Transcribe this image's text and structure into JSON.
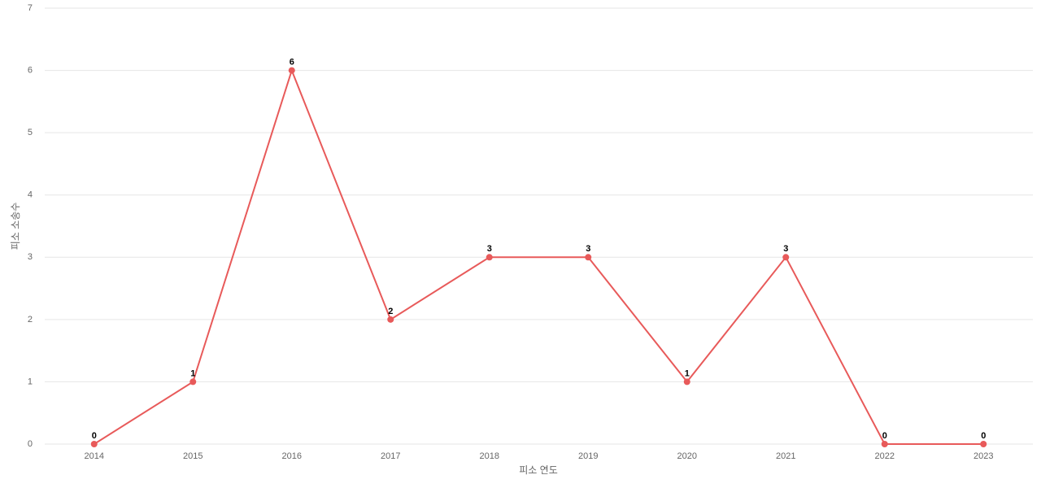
{
  "chart_data": {
    "type": "line",
    "x_label": "피소 연도",
    "y_label": "피소 소송수",
    "categories": [
      "2014",
      "2015",
      "2016",
      "2017",
      "2018",
      "2019",
      "2020",
      "2021",
      "2022",
      "2023"
    ],
    "values": [
      0,
      1,
      6,
      2,
      3,
      3,
      1,
      3,
      0,
      0
    ],
    "color": "#e85a5a",
    "ylim": [
      0,
      7
    ],
    "yticks": [
      0,
      1,
      2,
      3,
      4,
      5,
      6,
      7
    ],
    "grid": true
  }
}
